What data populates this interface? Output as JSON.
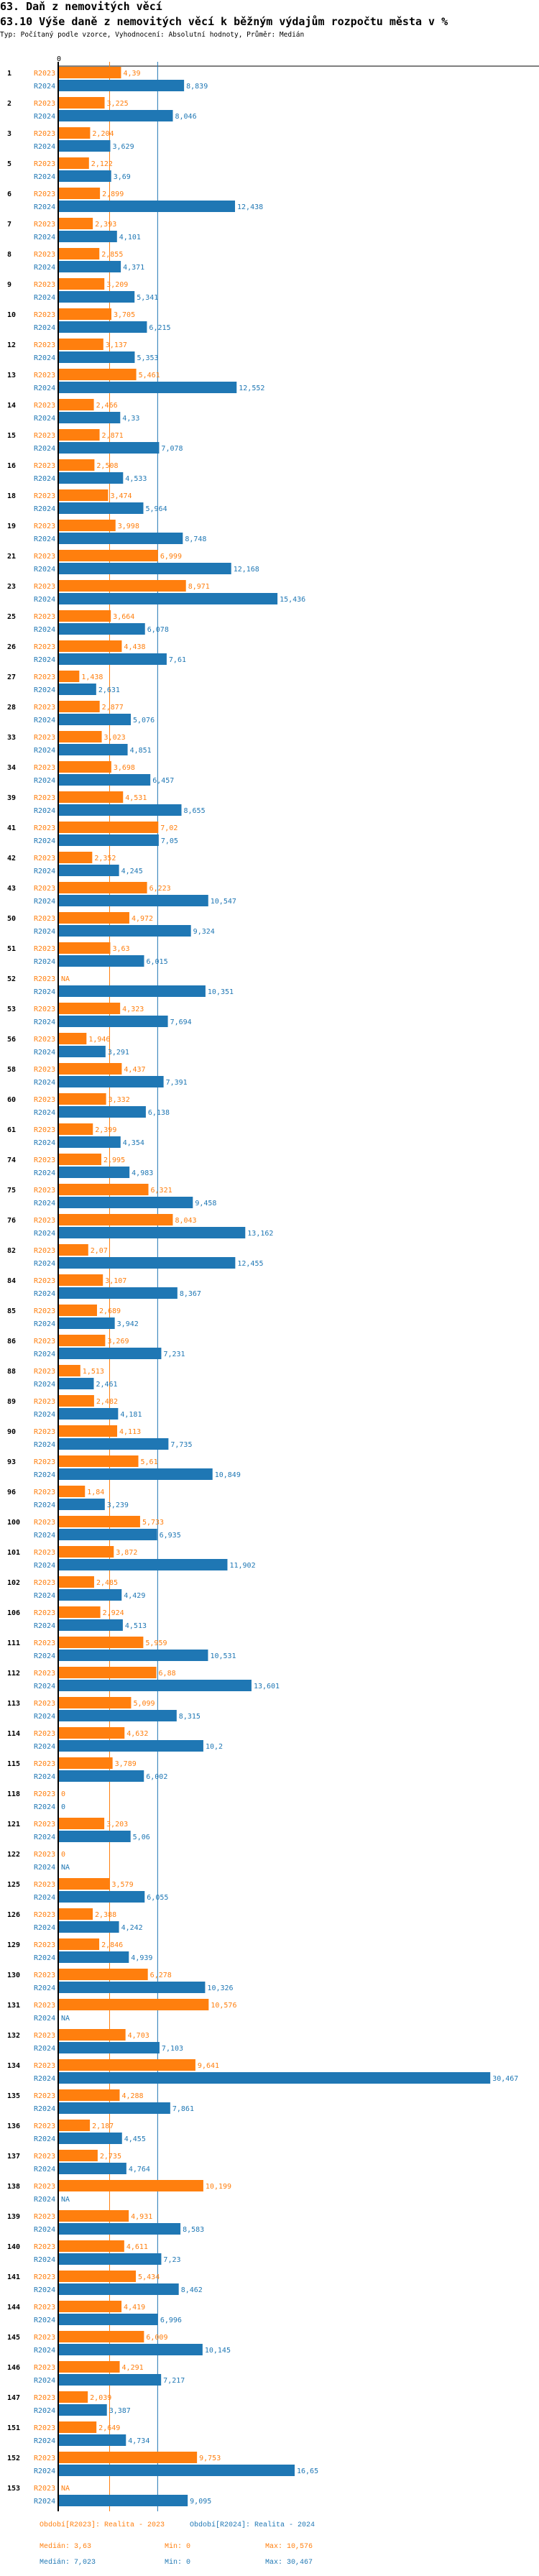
{
  "header": {
    "title": "63. Daň z nemovitých věcí",
    "subtitle": "63.10 Výše daně z nemovitých věcí k běžným výdajům rozpočtu města v %",
    "meta": "Typ: Počítaný podle vzorce, Vyhodnocení: Absolutní hodnoty, Průměr: Medián"
  },
  "colors": {
    "R2023": "#ff7f0e",
    "R2024": "#1f77b4",
    "axis": "#000000"
  },
  "chart_data": {
    "type": "bar",
    "orientation": "horizontal",
    "title": "63.10 Výše daně z nemovitých věcí k běžným výdajům rozpočtu města v %",
    "axis_zero_label": "0",
    "xlim": [
      0,
      30.467
    ],
    "series_names": [
      "R2023",
      "R2024"
    ],
    "categories": [
      "1",
      "2",
      "3",
      "5",
      "6",
      "7",
      "8",
      "9",
      "10",
      "12",
      "13",
      "14",
      "15",
      "16",
      "18",
      "19",
      "21",
      "23",
      "25",
      "26",
      "27",
      "28",
      "33",
      "34",
      "39",
      "41",
      "42",
      "43",
      "50",
      "51",
      "52",
      "53",
      "56",
      "58",
      "60",
      "61",
      "74",
      "75",
      "76",
      "82",
      "84",
      "85",
      "86",
      "88",
      "89",
      "90",
      "93",
      "96",
      "100",
      "101",
      "102",
      "106",
      "111",
      "112",
      "113",
      "114",
      "115",
      "118",
      "121",
      "122",
      "125",
      "126",
      "129",
      "130",
      "131",
      "132",
      "134",
      "135",
      "136",
      "137",
      "138",
      "139",
      "140",
      "141",
      "144",
      "145",
      "146",
      "147",
      "151",
      "152",
      "153"
    ],
    "series": [
      {
        "name": "R2023",
        "values": [
          4.39,
          3.225,
          2.204,
          2.122,
          2.899,
          2.393,
          2.855,
          3.209,
          3.705,
          3.137,
          5.461,
          2.466,
          2.871,
          2.508,
          3.474,
          3.998,
          6.999,
          8.971,
          3.664,
          4.438,
          1.438,
          2.877,
          3.023,
          3.698,
          4.531,
          7.02,
          2.352,
          6.223,
          4.972,
          3.63,
          null,
          4.323,
          1.946,
          4.437,
          3.332,
          2.399,
          2.995,
          6.321,
          8.043,
          2.07,
          3.107,
          2.689,
          3.269,
          1.513,
          2.482,
          4.113,
          5.61,
          1.84,
          5.733,
          3.872,
          2.485,
          2.924,
          5.959,
          6.88,
          5.099,
          4.632,
          3.789,
          0,
          3.203,
          0,
          3.579,
          2.388,
          2.846,
          6.278,
          10.576,
          4.703,
          9.641,
          4.288,
          2.187,
          2.735,
          10.199,
          4.931,
          4.611,
          5.434,
          4.419,
          6.009,
          4.291,
          2.039,
          2.649,
          9.753,
          null
        ]
      },
      {
        "name": "R2024",
        "values": [
          8.839,
          8.046,
          3.629,
          3.69,
          12.438,
          4.101,
          4.371,
          5.341,
          6.215,
          5.353,
          12.552,
          4.33,
          7.078,
          4.533,
          5.964,
          8.748,
          12.168,
          15.436,
          6.078,
          7.61,
          2.631,
          5.076,
          4.851,
          6.457,
          8.655,
          7.05,
          4.245,
          10.547,
          9.324,
          6.015,
          10.351,
          7.694,
          3.291,
          7.391,
          6.138,
          4.354,
          4.983,
          9.458,
          13.162,
          12.455,
          8.367,
          3.942,
          7.231,
          2.461,
          4.181,
          7.735,
          10.849,
          3.239,
          6.935,
          11.902,
          4.429,
          4.513,
          10.531,
          13.601,
          8.315,
          10.2,
          6.002,
          0,
          5.06,
          null,
          6.055,
          4.242,
          4.939,
          10.326,
          null,
          7.103,
          30.467,
          7.861,
          4.455,
          4.764,
          null,
          8.583,
          7.23,
          8.462,
          6.996,
          10.145,
          7.217,
          3.387,
          4.734,
          16.65,
          9.095
        ]
      }
    ],
    "value_labels": {
      "R2023": [
        "4,39",
        "3,225",
        "2,204",
        "2,122",
        "2,899",
        "2,393",
        "2,855",
        "3,209",
        "3,705",
        "3,137",
        "5,461",
        "2,466",
        "2,871",
        "2,508",
        "3,474",
        "3,998",
        "6,999",
        "8,971",
        "3,664",
        "4,438",
        "1,438",
        "2,877",
        "3,023",
        "3,698",
        "4,531",
        "7,02",
        "2,352",
        "6,223",
        "4,972",
        "3,63",
        "NA",
        "4,323",
        "1,946",
        "4,437",
        "3,332",
        "2,399",
        "2,995",
        "6,321",
        "8,043",
        "2,07",
        "3,107",
        "2,689",
        "3,269",
        "1,513",
        "2,482",
        "4,113",
        "5,61",
        "1,84",
        "5,733",
        "3,872",
        "2,485",
        "2,924",
        "5,959",
        "6,88",
        "5,099",
        "4,632",
        "3,789",
        "0",
        "3,203",
        "0",
        "3,579",
        "2,388",
        "2,846",
        "6,278",
        "10,576",
        "4,703",
        "9,641",
        "4,288",
        "2,187",
        "2,735",
        "10,199",
        "4,931",
        "4,611",
        "5,434",
        "4,419",
        "6,009",
        "4,291",
        "2,039",
        "2,649",
        "9,753",
        "NA"
      ],
      "R2024": [
        "8,839",
        "8,046",
        "3,629",
        "3,69",
        "12,438",
        "4,101",
        "4,371",
        "5,341",
        "6,215",
        "5,353",
        "12,552",
        "4,33",
        "7,078",
        "4,533",
        "5,964",
        "8,748",
        "12,168",
        "15,436",
        "6,078",
        "7,61",
        "2,631",
        "5,076",
        "4,851",
        "6,457",
        "8,655",
        "7,05",
        "4,245",
        "10,547",
        "9,324",
        "6,015",
        "10,351",
        "7,694",
        "3,291",
        "7,391",
        "6,138",
        "4,354",
        "4,983",
        "9,458",
        "13,162",
        "12,455",
        "8,367",
        "3,942",
        "7,231",
        "2,461",
        "4,181",
        "7,735",
        "10,849",
        "3,239",
        "6,935",
        "11,902",
        "4,429",
        "4,513",
        "10,531",
        "13,601",
        "8,315",
        "10,2",
        "6,002",
        "0",
        "5,06",
        "NA",
        "6,055",
        "4,242",
        "4,939",
        "10,326",
        "NA",
        "7,103",
        "30,467",
        "7,861",
        "4,455",
        "4,764",
        "NA",
        "8,583",
        "7,23",
        "8,462",
        "6,996",
        "10,145",
        "7,217",
        "3,387",
        "4,734",
        "16,65",
        "9,095"
      ]
    },
    "reference_lines": [
      {
        "series": "R2023",
        "type": "median",
        "value": 3.63
      },
      {
        "series": "R2024",
        "type": "median",
        "value": 7.023
      }
    ],
    "grid": false,
    "legend_position": "bottom"
  },
  "legend": {
    "r2023_label": "Období[R2023]: Realita - 2023",
    "r2024_label": "Období[R2024]: Realita - 2024",
    "r2023_median": "Medián: 3,63",
    "r2023_min": "Min: 0",
    "r2023_max": "Max: 10,576",
    "r2024_median": "Medián: 7,023",
    "r2024_min": "Min: 0",
    "r2024_max": "Max: 30,467"
  }
}
